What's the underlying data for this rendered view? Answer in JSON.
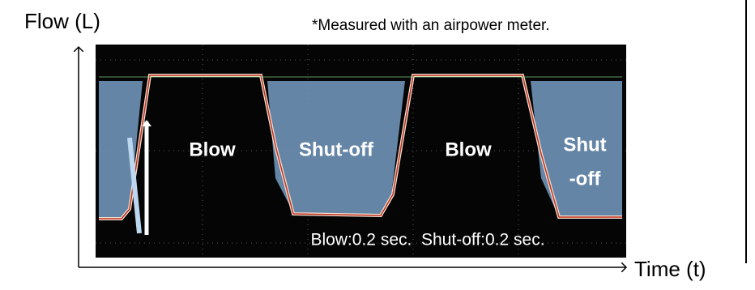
{
  "axis": {
    "y_label": "Flow (L)",
    "x_label": "Time (t)"
  },
  "note": "*Measured with an airpower meter.",
  "phases": [
    {
      "label": "Blow"
    },
    {
      "label": "Shut-off"
    },
    {
      "label": "Blow"
    },
    {
      "label_lines": [
        "Shut",
        "-off"
      ]
    }
  ],
  "timing": "Blow:0.2 sec.  Shut-off:0.2 sec."
}
